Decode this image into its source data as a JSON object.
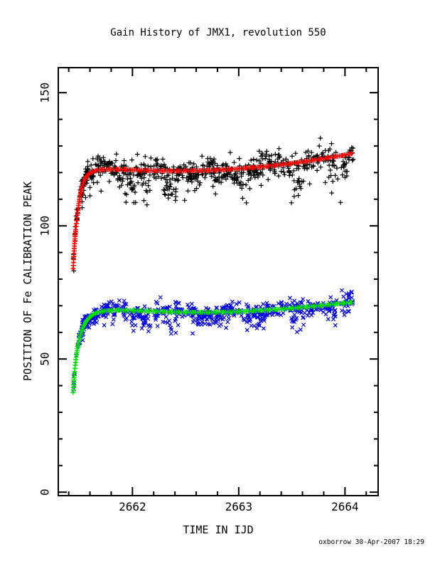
{
  "chart_data": {
    "type": "scatter",
    "title": "Gain History of JMX1, revolution 550",
    "xlabel": "TIME IN IJD",
    "ylabel": "POSITION OF Fe CALIBRATION PEAK",
    "annotation": "oxborrow 30-Apr-2007 18:29",
    "background": "#ffffff",
    "frame_color": "#000000",
    "xlim": [
      2661.302,
      2664.312
    ],
    "ylim": [
      -1.3,
      159.4
    ],
    "x_major_ticks": [
      2662,
      2663,
      2664
    ],
    "x_minor_step": 0.2,
    "y_major_ticks": [
      0,
      50,
      100,
      150
    ],
    "y_minor_step": 10,
    "grid": false,
    "legend": "none",
    "series": [
      {
        "name": "upper-peak-measurements",
        "marker": "plus",
        "color": "#000000",
        "scatter_spec": {
          "seed": 1337,
          "count": 660,
          "x_start": 2661.52,
          "x_end": 2664.08,
          "sigma": 2.2,
          "wave_amp": 1.3,
          "wave_period": 0.5,
          "outlier_prob": 0.05,
          "outlier_max": 11,
          "rise_count": 45,
          "rise_x_start": 2661.442,
          "rise_x_end": 2661.58,
          "rise_sigma": 2.2,
          "dip_scale": 1.0,
          "marker_half": 3.4
        }
      },
      {
        "name": "upper-peak-fit",
        "marker": "plus",
        "color": "#ff0000",
        "curve": [
          [
            2661.442,
            84
          ],
          [
            2661.446,
            87
          ],
          [
            2661.45,
            90
          ],
          [
            2661.455,
            93
          ],
          [
            2661.46,
            96
          ],
          [
            2661.467,
            99
          ],
          [
            2661.475,
            102
          ],
          [
            2661.484,
            105
          ],
          [
            2661.494,
            108
          ],
          [
            2661.506,
            111
          ],
          [
            2661.52,
            114
          ],
          [
            2661.54,
            116.5
          ],
          [
            2661.56,
            118.2
          ],
          [
            2661.59,
            119.6
          ],
          [
            2661.63,
            120.5
          ],
          [
            2661.68,
            121.0
          ],
          [
            2661.75,
            121.2
          ],
          [
            2661.85,
            121.2
          ],
          [
            2662.0,
            121.0
          ],
          [
            2662.2,
            120.7
          ],
          [
            2662.45,
            120.6
          ],
          [
            2662.7,
            120.8
          ],
          [
            2662.95,
            121.3
          ],
          [
            2663.2,
            122.1
          ],
          [
            2663.45,
            123.2
          ],
          [
            2663.7,
            124.6
          ],
          [
            2663.9,
            125.9
          ],
          [
            2664.02,
            126.8
          ],
          [
            2664.07,
            127.2
          ]
        ]
      },
      {
        "name": "lower-peak-measurements",
        "marker": "cross",
        "color": "#0000e6",
        "scatter_spec": {
          "seed": 777,
          "count": 620,
          "x_start": 2661.52,
          "x_end": 2664.08,
          "sigma": 1.5,
          "wave_amp": 0.9,
          "wave_period": 0.55,
          "outlier_prob": 0.05,
          "outlier_max": 8,
          "rise_count": 40,
          "rise_x_start": 2661.445,
          "rise_x_end": 2661.6,
          "rise_sigma": 1.6,
          "dip_scale": 0.7,
          "marker_half": 2.6
        }
      },
      {
        "name": "lower-peak-fit",
        "marker": "plus",
        "color": "#00e000",
        "curve": [
          [
            2661.442,
            37.5
          ],
          [
            2661.446,
            40
          ],
          [
            2661.45,
            42.5
          ],
          [
            2661.455,
            45
          ],
          [
            2661.461,
            47.5
          ],
          [
            2661.468,
            50
          ],
          [
            2661.477,
            52.5
          ],
          [
            2661.487,
            55
          ],
          [
            2661.5,
            57.5
          ],
          [
            2661.515,
            59.8
          ],
          [
            2661.535,
            62
          ],
          [
            2661.56,
            63.9
          ],
          [
            2661.59,
            65.5
          ],
          [
            2661.63,
            66.8
          ],
          [
            2661.68,
            67.6
          ],
          [
            2661.75,
            68.1
          ],
          [
            2661.85,
            68.3
          ],
          [
            2662.0,
            68.2
          ],
          [
            2662.2,
            67.9
          ],
          [
            2662.45,
            67.6
          ],
          [
            2662.7,
            67.5
          ],
          [
            2662.95,
            67.7
          ],
          [
            2663.2,
            68.2
          ],
          [
            2663.45,
            68.9
          ],
          [
            2663.7,
            69.8
          ],
          [
            2663.9,
            70.6
          ],
          [
            2664.02,
            71.1
          ],
          [
            2664.07,
            71.3
          ]
        ]
      }
    ],
    "dips": [
      {
        "x": 2661.98,
        "w": 0.05,
        "d": 9
      },
      {
        "x": 2662.13,
        "w": 0.04,
        "d": 7
      },
      {
        "x": 2662.36,
        "w": 0.07,
        "d": 10
      },
      {
        "x": 2662.62,
        "w": 0.04,
        "d": 6
      },
      {
        "x": 2662.79,
        "w": 0.05,
        "d": 7
      },
      {
        "x": 2663.07,
        "w": 0.05,
        "d": 6
      },
      {
        "x": 2663.2,
        "w": 0.04,
        "d": 5
      },
      {
        "x": 2663.55,
        "w": 0.07,
        "d": 11
      },
      {
        "x": 2663.9,
        "w": 0.06,
        "d": 9
      },
      {
        "x": 2663.99,
        "w": 0.03,
        "d": 7
      }
    ]
  }
}
